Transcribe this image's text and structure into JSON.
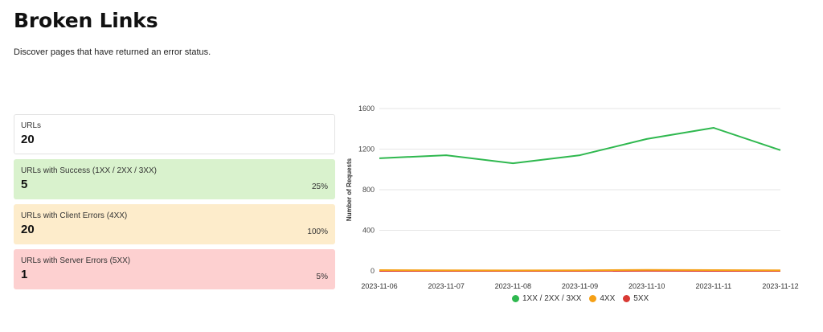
{
  "page": {
    "title": "Broken Links",
    "subtitle": "Discover pages that have returned an error status."
  },
  "stats": [
    {
      "label": "URLs",
      "value": "20",
      "percent": ""
    },
    {
      "label": "URLs with Success (1XX / 2XX / 3XX)",
      "value": "5",
      "percent": "25%"
    },
    {
      "label": "URLs with Client Errors (4XX)",
      "value": "20",
      "percent": "100%"
    },
    {
      "label": "URLs with Server Errors (5XX)",
      "value": "1",
      "percent": "5%"
    }
  ],
  "colors": {
    "success": "#2fb84f",
    "client": "#f5a016",
    "server": "#d93a34",
    "grid": "#e6e6e6"
  },
  "chart_data": {
    "type": "line",
    "title": "",
    "xlabel": "",
    "ylabel": "Number of Requests",
    "ylim": [
      0,
      1600
    ],
    "yticks": [
      0,
      400,
      800,
      1200,
      1600
    ],
    "categories": [
      "2023-11-06",
      "2023-11-07",
      "2023-11-08",
      "2023-11-09",
      "2023-11-10",
      "2023-11-11",
      "2023-11-12"
    ],
    "series": [
      {
        "name": "1XX / 2XX / 3XX",
        "color": "#2fb84f",
        "values": [
          1110,
          1140,
          1060,
          1140,
          1300,
          1410,
          1190
        ]
      },
      {
        "name": "4XX",
        "color": "#f5a016",
        "values": [
          8,
          6,
          5,
          6,
          10,
          8,
          6
        ]
      },
      {
        "name": "5XX",
        "color": "#d93a34",
        "values": [
          0,
          0,
          0,
          0,
          1,
          0,
          0
        ]
      }
    ],
    "legend_position": "bottom"
  }
}
